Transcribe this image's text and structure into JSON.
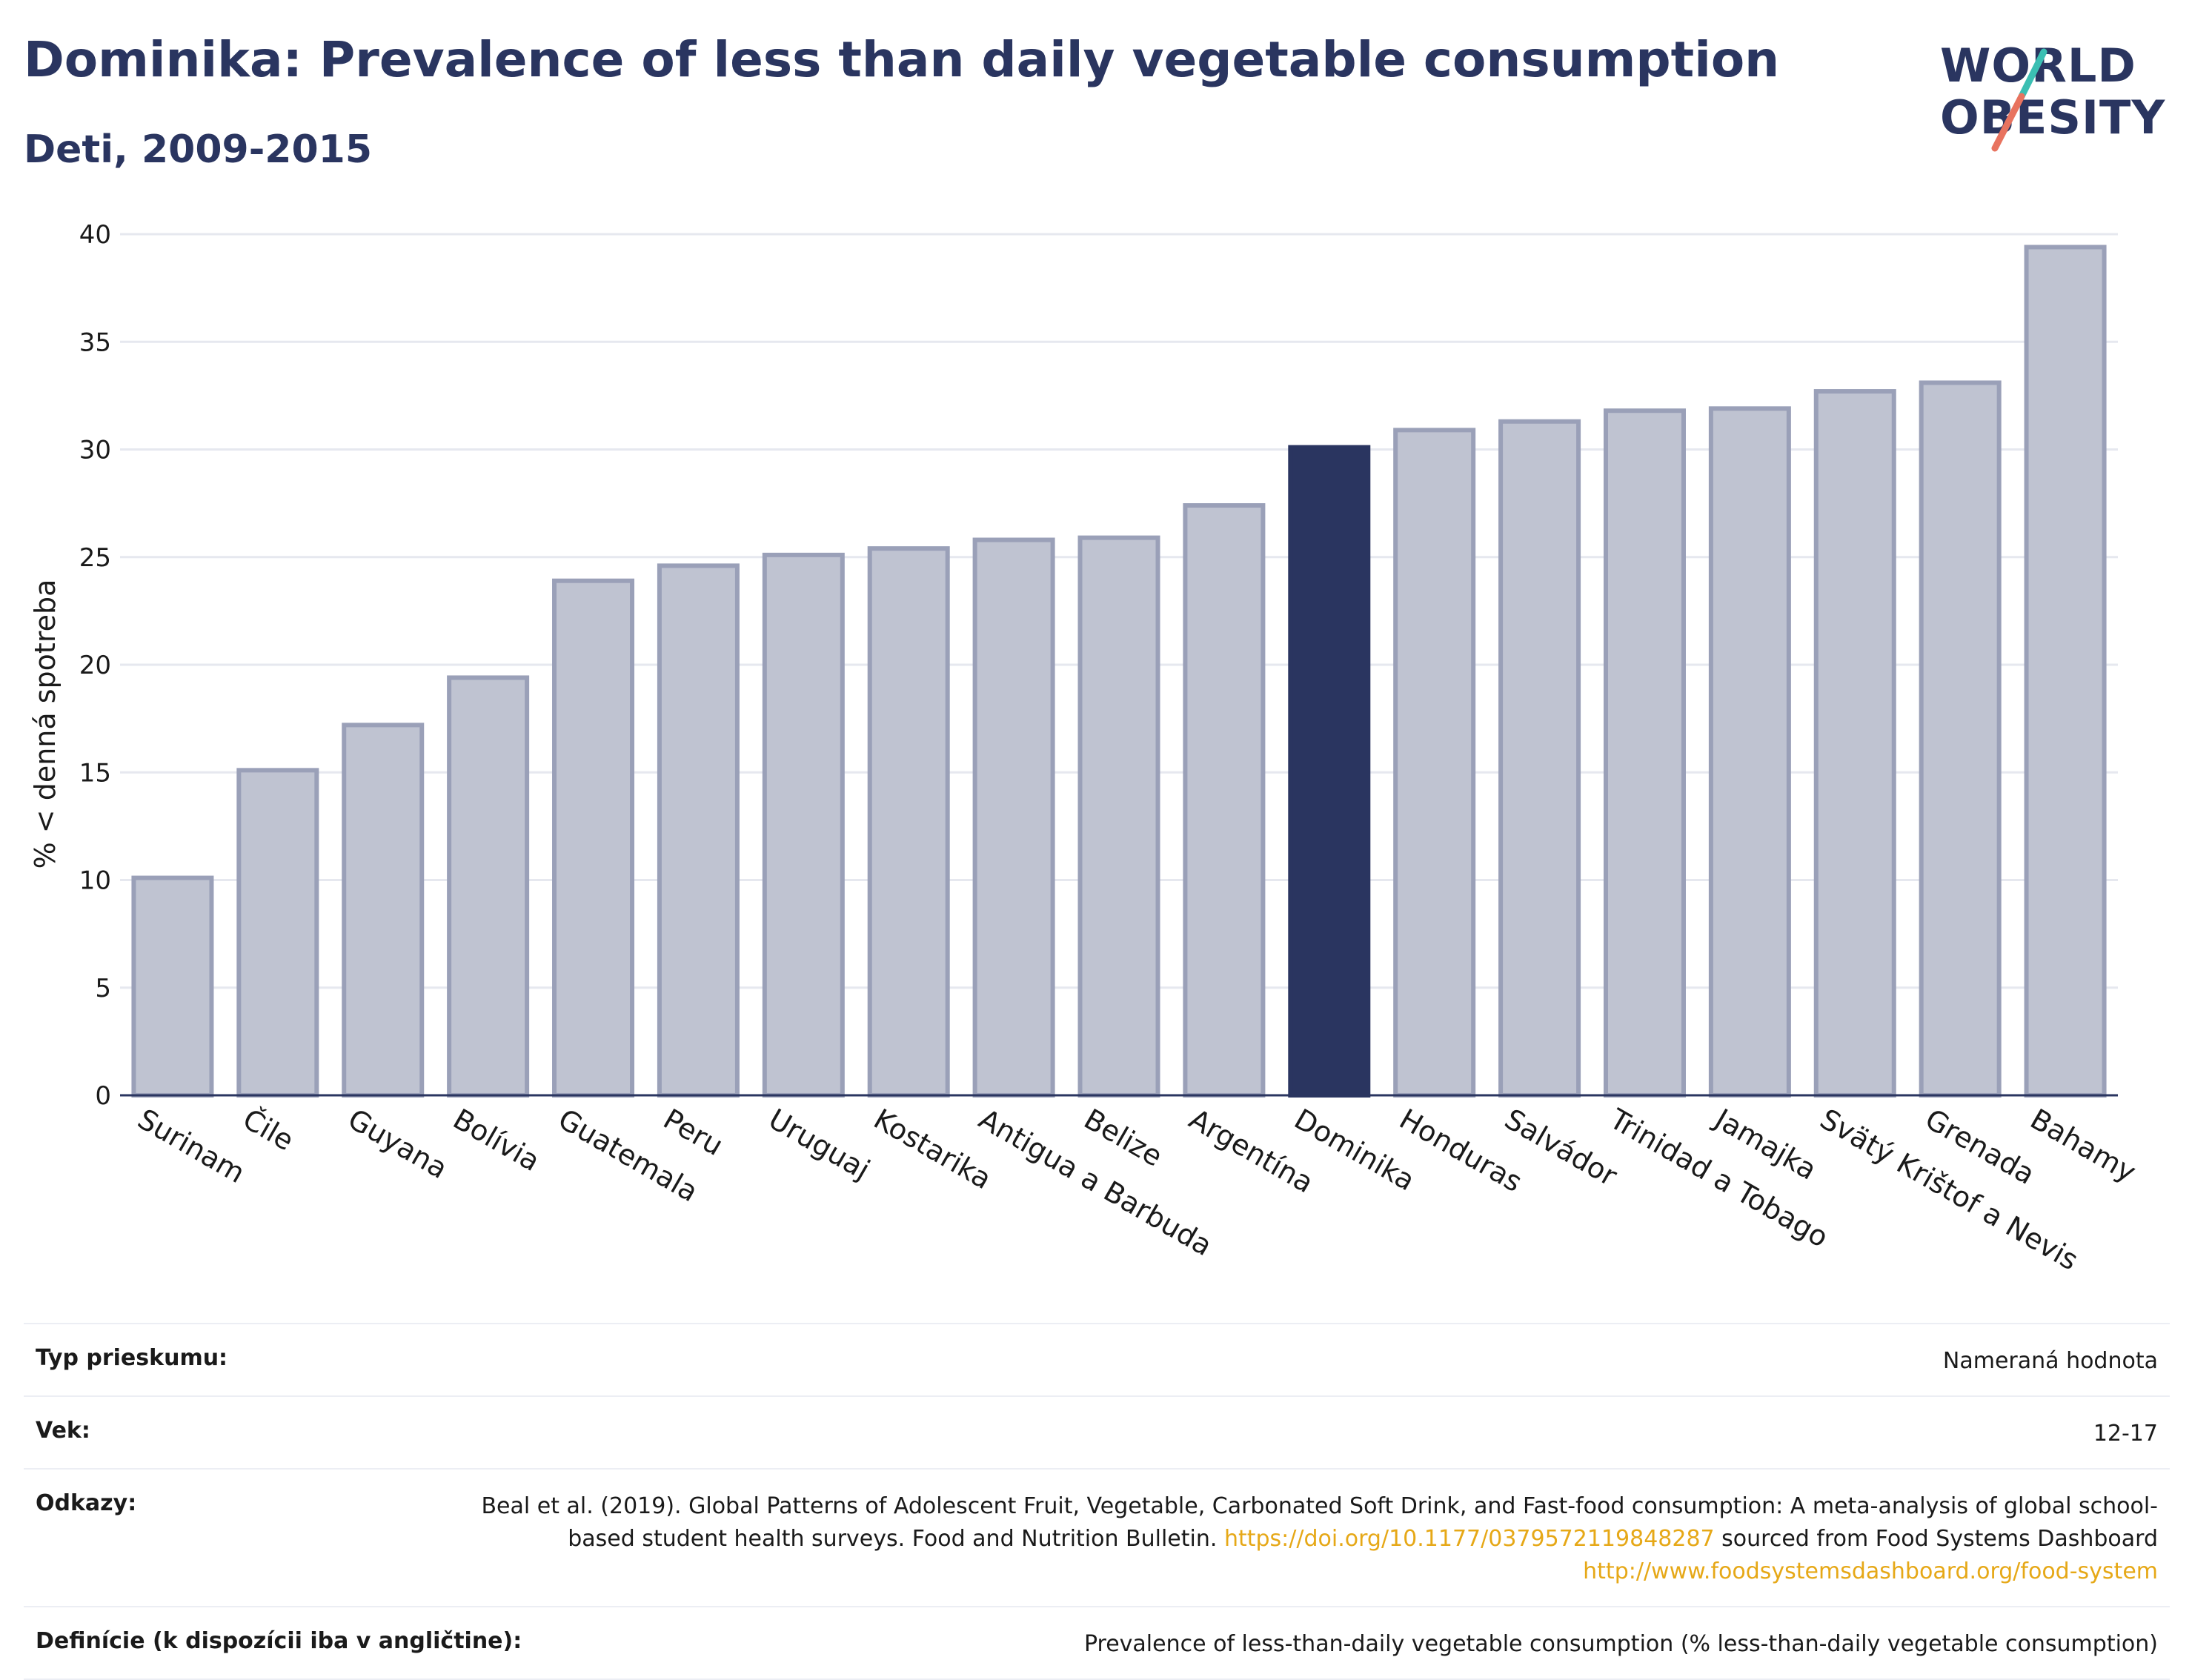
{
  "header": {
    "title": "Dominika: Prevalence of less than daily vegetable consumption",
    "subtitle": "Deti, 2009-2015"
  },
  "logo": {
    "line1": "WORLD",
    "line2": "OBESITY"
  },
  "colors": {
    "highlight": "#2a3560",
    "bar": "#bfc3d1",
    "bar_border": "#9aa0b8",
    "grid": "#e6e8ef",
    "logo_teal": "#3bbfb3",
    "logo_coral": "#e8735f"
  },
  "chart_data": {
    "type": "bar",
    "ylabel": "% < denná spotreba",
    "xlabel": "",
    "ylim": [
      0,
      40
    ],
    "yticks": [
      0,
      5,
      10,
      15,
      20,
      25,
      30,
      35,
      40
    ],
    "grid": true,
    "highlight": "Dominika",
    "categories": [
      "Surinam",
      "Čile",
      "Guyana",
      "Bolívia",
      "Guatemala",
      "Peru",
      "Uruguaj",
      "Kostarika",
      "Antigua a Barbuda",
      "Belize",
      "Argentína",
      "Dominika",
      "Honduras",
      "Salvádor",
      "Trinidad a Tobago",
      "Jamajka",
      "Svätý Krištof a Nevis",
      "Grenada",
      "Bahamy"
    ],
    "values": [
      10.1,
      15.1,
      17.2,
      19.4,
      23.9,
      24.6,
      25.1,
      25.4,
      25.8,
      25.9,
      27.4,
      30.1,
      30.9,
      31.3,
      31.8,
      31.9,
      32.7,
      33.1,
      39.4
    ]
  },
  "info": {
    "rows": [
      {
        "label": "Typ prieskumu:",
        "value": "Nameraná hodnota"
      },
      {
        "label": "Vek:",
        "value": "12-17"
      },
      {
        "label": "Odkazy:",
        "value_part1": "Beal et al. (2019). Global Patterns of Adolescent Fruit, Vegetable, Carbonated Soft Drink, and Fast-food consumption: A meta-analysis of global school-based student health surveys. Food and Nutrition Bulletin.",
        "link1": "https://doi.org/10.1177/0379572119848287",
        "value_part2": "sourced from Food Systems Dashboard",
        "link2": "http://www.foodsystemsdashboard.org/food-system"
      },
      {
        "label": "Definície (k dispozícii iba v angličtine):",
        "value": "Prevalence of less-than-daily vegetable consumption (% less-than-daily vegetable consumption)"
      }
    ]
  }
}
